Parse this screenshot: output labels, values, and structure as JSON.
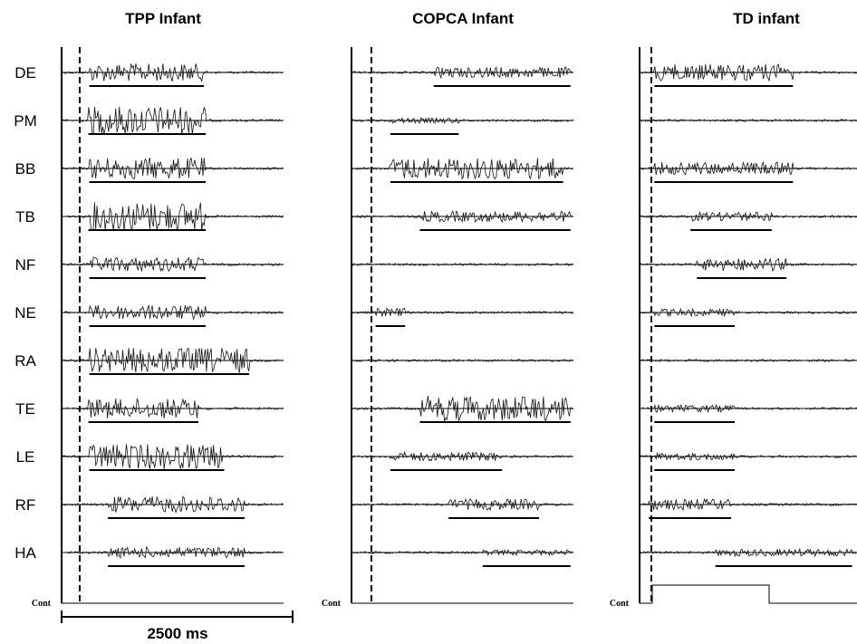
{
  "chart_data": {
    "type": "emg-traces",
    "muscles": [
      "DE",
      "PM",
      "BB",
      "TB",
      "NF",
      "NE",
      "RA",
      "TE",
      "LE",
      "RF",
      "HA"
    ],
    "control_label": "Cont",
    "scale_bar": {
      "label": "2500 ms",
      "duration_ms": 2500
    },
    "panels": [
      {
        "title": "TPP Infant",
        "bursts": [
          {
            "muscle": "DE",
            "on_ms": 300,
            "off_ms": 1540
          },
          {
            "muscle": "PM",
            "on_ms": 290,
            "off_ms": 1560
          },
          {
            "muscle": "BB",
            "on_ms": 300,
            "off_ms": 1560
          },
          {
            "muscle": "TB",
            "on_ms": 290,
            "off_ms": 1560
          },
          {
            "muscle": "NF",
            "on_ms": 300,
            "off_ms": 1560
          },
          {
            "muscle": "NE",
            "on_ms": 300,
            "off_ms": 1560
          },
          {
            "muscle": "RA",
            "on_ms": 300,
            "off_ms": 2030
          },
          {
            "muscle": "TE",
            "on_ms": 290,
            "off_ms": 1480
          },
          {
            "muscle": "LE",
            "on_ms": 300,
            "off_ms": 1760
          },
          {
            "muscle": "RF",
            "on_ms": 500,
            "off_ms": 1980
          },
          {
            "muscle": "HA",
            "on_ms": 500,
            "off_ms": 1980
          }
        ]
      },
      {
        "title": "COPCA Infant",
        "bursts": [
          {
            "muscle": "DE",
            "on_ms": 890,
            "off_ms": 2370
          },
          {
            "muscle": "PM",
            "on_ms": 420,
            "off_ms": 1160
          },
          {
            "muscle": "BB",
            "on_ms": 420,
            "off_ms": 2290
          },
          {
            "muscle": "TB",
            "on_ms": 740,
            "off_ms": 2370
          },
          {
            "muscle": "NE",
            "on_ms": 260,
            "off_ms": 580
          },
          {
            "muscle": "TE",
            "on_ms": 740,
            "off_ms": 2370
          },
          {
            "muscle": "LE",
            "on_ms": 420,
            "off_ms": 1630
          },
          {
            "muscle": "RF",
            "on_ms": 1050,
            "off_ms": 2030
          },
          {
            "muscle": "HA",
            "on_ms": 1420,
            "off_ms": 2370
          }
        ]
      },
      {
        "title": "TD infant",
        "bursts": [
          {
            "muscle": "DE",
            "on_ms": 160,
            "off_ms": 1660
          },
          {
            "muscle": "BB",
            "on_ms": 160,
            "off_ms": 1660
          },
          {
            "muscle": "TB",
            "on_ms": 550,
            "off_ms": 1430
          },
          {
            "muscle": "NF",
            "on_ms": 620,
            "off_ms": 1590
          },
          {
            "muscle": "NE",
            "on_ms": 160,
            "off_ms": 1030
          },
          {
            "muscle": "TE",
            "on_ms": 160,
            "off_ms": 1030
          },
          {
            "muscle": "LE",
            "on_ms": 160,
            "off_ms": 1030
          },
          {
            "muscle": "RF",
            "on_ms": 100,
            "off_ms": 990
          },
          {
            "muscle": "HA",
            "on_ms": 820,
            "off_ms": 2300
          }
        ]
      }
    ]
  }
}
